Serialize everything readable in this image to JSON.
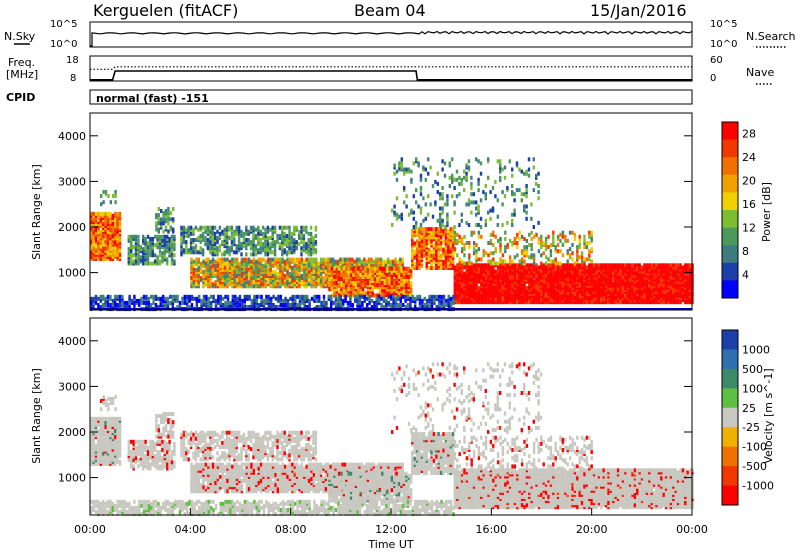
{
  "header": {
    "station": "Kerguelen (fitACF)",
    "beam": "Beam 04",
    "date": "15/Jan/2016"
  },
  "panels": {
    "nsky": {
      "label": "N.Sky",
      "left_ticks": [
        "10^5",
        "10^0"
      ],
      "right_ticks": [
        "10^5",
        "10^0"
      ],
      "right_label": "N.Search"
    },
    "freq": {
      "label_line1": "Freq.",
      "label_line2": "[MHz]",
      "left_ticks": [
        "18",
        "8"
      ],
      "right_ticks": [
        "60",
        "0"
      ],
      "right_label": "Nave"
    },
    "cpid": {
      "label": "CPID",
      "text": "normal (fast) -151"
    }
  },
  "chart_data": [
    {
      "type": "line",
      "name": "frequency-nave",
      "x_unit": "hours UT",
      "freq_series": {
        "x": [
          0,
          0.9,
          1.0,
          13.0,
          13.05,
          24
        ],
        "y": [
          8.5,
          8.5,
          12.0,
          12.0,
          8.5,
          8.5
        ]
      },
      "freq_ylim": [
        8,
        18
      ],
      "nave_series": {
        "x": [
          0,
          0.9,
          1.0,
          24
        ],
        "y": [
          28,
          28,
          34,
          34
        ]
      },
      "nave_ylim": [
        0,
        60
      ]
    },
    {
      "type": "heatmap",
      "name": "power",
      "ylabel": "Slant Range [km]",
      "ylim": [
        180,
        4500
      ],
      "yticks": [
        1000,
        2000,
        3000,
        4000
      ],
      "colorbar": {
        "label": "Power [dB]",
        "ticks": [
          4,
          8,
          12,
          16,
          20,
          24,
          28
        ],
        "range": [
          0,
          30
        ],
        "colors": [
          "#0000ff",
          "#1a3fa8",
          "#3d7d7d",
          "#4c9a5a",
          "#7dbd30",
          "#f0d000",
          "#f0a000",
          "#f07000",
          "#f03800",
          "#ff0000"
        ]
      }
    },
    {
      "type": "heatmap",
      "name": "velocity",
      "ylabel": "Slant Range [km]",
      "xlabel": "Time UT",
      "ylim": [
        180,
        4500
      ],
      "yticks": [
        1000,
        2000,
        3000,
        4000
      ],
      "xlim": [
        0,
        24
      ],
      "xticks": [
        "00:00",
        "04:00",
        "08:00",
        "12:00",
        "16:00",
        "20:00",
        "00:00"
      ],
      "colorbar": {
        "label": "Velocity [m s^-1]",
        "ticks": [
          "1000",
          "500",
          "100",
          "25",
          "-25",
          "-100",
          "-500",
          "-1000"
        ],
        "colors": [
          "#1a3fa8",
          "#2f6fb0",
          "#3d8a6a",
          "#5ec040",
          "#c8c8c0",
          "#f0b000",
          "#f07000",
          "#f03800",
          "#ff0000"
        ]
      }
    }
  ]
}
